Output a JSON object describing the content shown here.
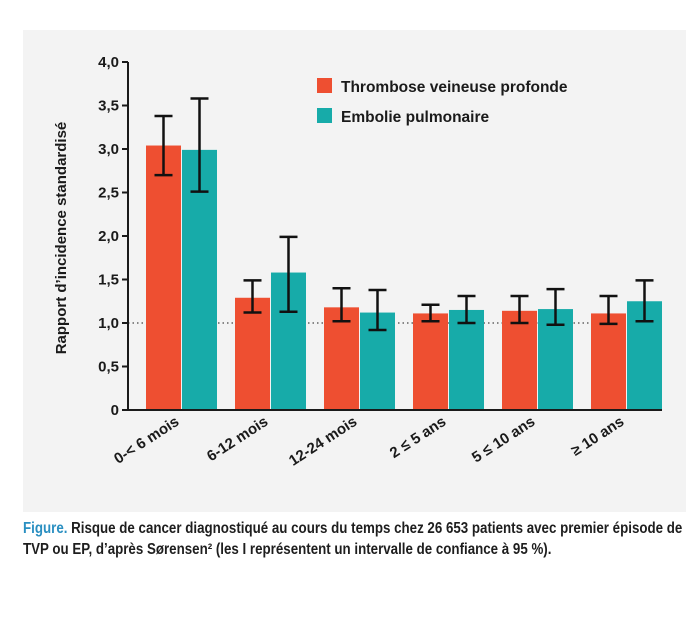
{
  "chart_data": {
    "type": "bar",
    "categories": [
      "0-< 6 mois",
      "6-12 mois",
      "12-24 mois",
      "2 ≤ 5 ans",
      "5 ≤ 10 ans",
      "≥ 10 ans"
    ],
    "series": [
      {
        "name": "Thrombose veineuse profonde",
        "color": "#ee4f31",
        "values": [
          3.04,
          1.29,
          1.18,
          1.11,
          1.14,
          1.11
        ],
        "ci_low": [
          2.7,
          1.12,
          1.02,
          1.02,
          1.0,
          0.99
        ],
        "ci_high": [
          3.38,
          1.49,
          1.4,
          1.21,
          1.31,
          1.31
        ]
      },
      {
        "name": "Embolie pulmonaire",
        "color": "#17aba9",
        "values": [
          2.99,
          1.58,
          1.12,
          1.15,
          1.16,
          1.25
        ],
        "ci_low": [
          2.51,
          1.13,
          0.92,
          1.0,
          0.98,
          1.02
        ],
        "ci_high": [
          3.58,
          1.99,
          1.38,
          1.31,
          1.39,
          1.49
        ]
      }
    ],
    "ylabel": "Rapport d’incidence standardisé",
    "yticks": [
      "0",
      "0,5",
      "1,0",
      "1,5",
      "2,0",
      "2,5",
      "3,0",
      "3,5",
      "4,0"
    ],
    "ylim": [
      0,
      4
    ],
    "reference_line": 1.0,
    "legend_position": "top-right",
    "grid": false
  },
  "caption": {
    "label": "Figure.",
    "text": " Risque de cancer diagnostiqué au cours du temps chez 26 653 patients avec premier épisode de TVP ou EP, d’après Sørensen² (les I représentent un intervalle de confiance à 95 %)."
  }
}
